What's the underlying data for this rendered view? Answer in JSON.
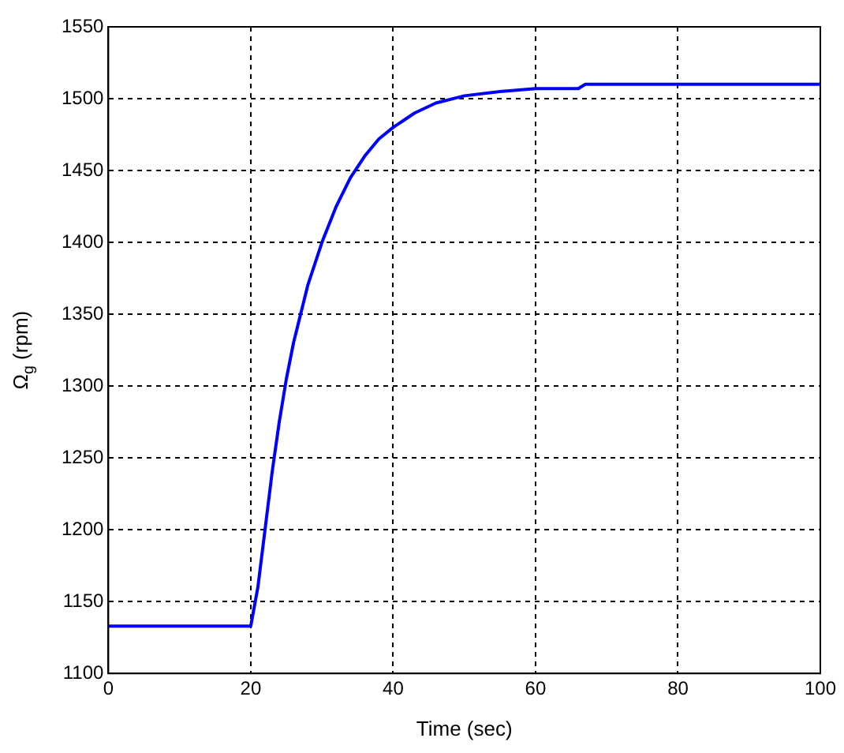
{
  "chart_data": {
    "type": "line",
    "xlabel": "Time (sec)",
    "ylabel": "Ω$_{g}$ (rpm)",
    "x": [
      0,
      20,
      21,
      22,
      23,
      24,
      25,
      26,
      28,
      30,
      32,
      34,
      36,
      38,
      40,
      43,
      46,
      50,
      55,
      60,
      66,
      67,
      100
    ],
    "series": [
      {
        "color": "#0000ff",
        "values": [
          1133,
          1133,
          1160,
          1200,
          1240,
          1275,
          1305,
          1330,
          1370,
          1400,
          1425,
          1445,
          1460,
          1472,
          1480,
          1490,
          1497,
          1502,
          1505,
          1507,
          1507,
          1510,
          1510
        ]
      }
    ],
    "xlim": [
      0,
      100
    ],
    "xticks": [
      0,
      20,
      40,
      60,
      80,
      100
    ],
    "ylim": [
      1100,
      1550
    ],
    "yticks": [
      1100,
      1150,
      1200,
      1250,
      1300,
      1350,
      1400,
      1450,
      1500,
      1550
    ],
    "grid": true,
    "legend": false,
    "marker": "none",
    "line_style": "solid"
  }
}
